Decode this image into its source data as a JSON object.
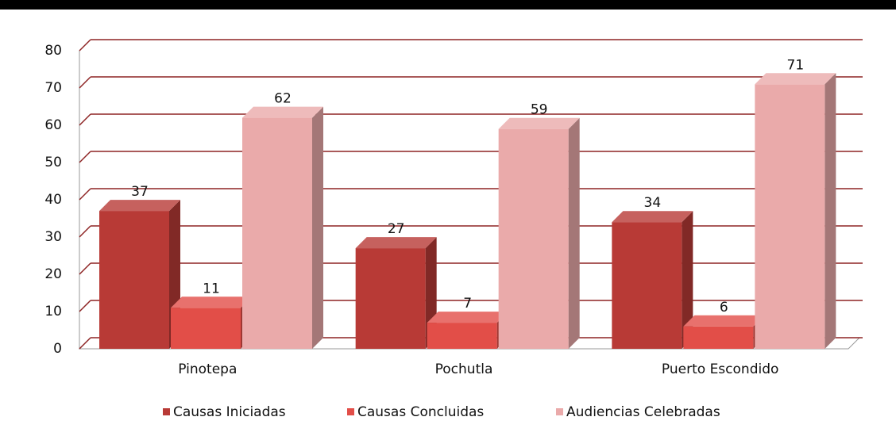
{
  "chart_data": {
    "type": "bar",
    "categories": [
      "Pinotepa",
      "Pochutla",
      "Puerto Escondido"
    ],
    "series": [
      {
        "name": "Causas Iniciadas",
        "color": "#b83a36",
        "values": [
          37,
          27,
          34
        ]
      },
      {
        "name": "Causas Concluidas",
        "color": "#e24e48",
        "values": [
          11,
          7,
          6
        ]
      },
      {
        "name": "Audiencias Celebradas",
        "color": "#eaaaaa",
        "values": [
          62,
          59,
          71
        ]
      }
    ],
    "ylim": [
      0,
      80
    ],
    "yticks": [
      0,
      10,
      20,
      30,
      40,
      50,
      60,
      70,
      80
    ],
    "grid": true,
    "legend": "bottom"
  }
}
